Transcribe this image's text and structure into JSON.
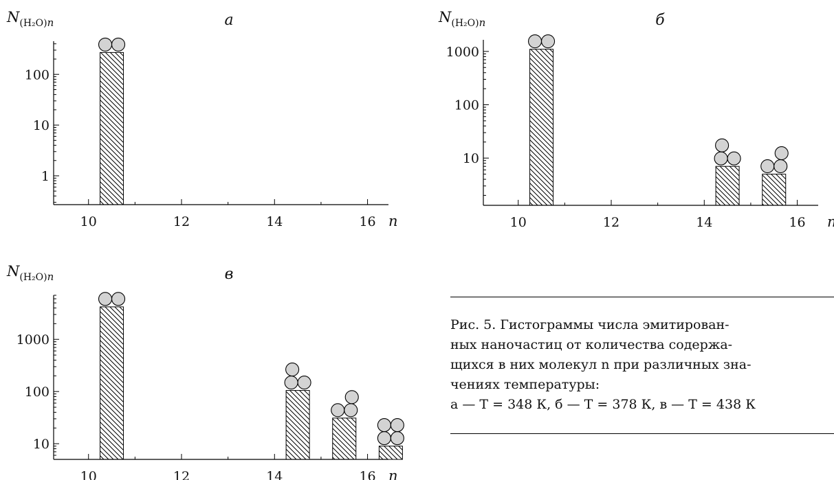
{
  "chart_data": [
    {
      "type": "bar",
      "title": "а",
      "ylabel_main": "N",
      "ylabel_sub": "(H₂O)",
      "ylabel_tail": "n",
      "xlabel": "n",
      "yscale": "log",
      "ylim": [
        0.27,
        450
      ],
      "yticks": [
        1,
        10,
        100
      ],
      "xticks": [
        10,
        12,
        14,
        16
      ],
      "xlim": [
        9.25,
        16.45
      ],
      "categories": [
        10
      ],
      "values": [
        270
      ],
      "glyphs": [
        "pair"
      ],
      "grid": false
    },
    {
      "type": "bar",
      "title": "б",
      "ylabel_main": "N",
      "ylabel_sub": "(H₂O)",
      "ylabel_tail": "n",
      "xlabel": "n",
      "yscale": "log",
      "ylim": [
        1.3,
        1650
      ],
      "yticks": [
        10,
        100,
        1000
      ],
      "xticks": [
        10,
        12,
        14,
        16
      ],
      "xlim": [
        9.25,
        16.45
      ],
      "categories": [
        10,
        14,
        15
      ],
      "values": [
        1100,
        7,
        5
      ],
      "glyphs": [
        "pair",
        "triangle",
        "slanted"
      ],
      "grid": false
    },
    {
      "type": "bar",
      "title": "в",
      "ylabel_main": "N",
      "ylabel_sub": "(H₂O)",
      "ylabel_tail": "n",
      "xlabel": "n",
      "yscale": "log",
      "ylim": [
        5,
        7000
      ],
      "yticks": [
        10,
        100,
        1000
      ],
      "xticks": [
        10,
        12,
        14,
        16
      ],
      "xlim": [
        9.25,
        16.45
      ],
      "categories": [
        10,
        14,
        15,
        16
      ],
      "values": [
        4200,
        105,
        31,
        9
      ],
      "glyphs": [
        "pair",
        "triangle",
        "slanted",
        "square"
      ],
      "grid": false
    }
  ],
  "caption": {
    "lines": [
      "Рис. 5.  Гистограммы числа эмитирован-",
      "ных наночастиц от количества содержа-",
      "щихся в них молекул n при различных зна-",
      "чениях температуры:",
      "а — T = 348 К, б — T = 378 К, в — T = 438 К"
    ]
  }
}
